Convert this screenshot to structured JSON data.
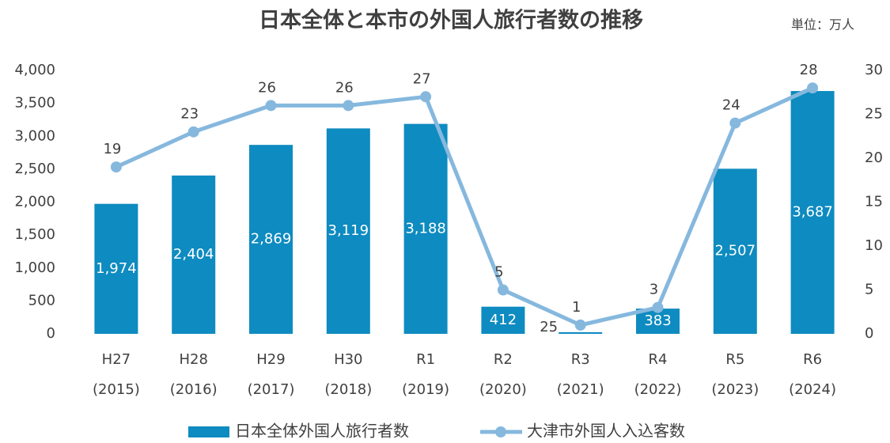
{
  "chart_data": {
    "type": "bar_line",
    "title": "日本全体と本市の外国人旅行者数の推移",
    "unit_label": "単位：万人",
    "categories": [
      [
        "H27",
        "(2015)"
      ],
      [
        "H28",
        "(2016)"
      ],
      [
        "H29",
        "(2017)"
      ],
      [
        "H30",
        "(2018)"
      ],
      [
        "R1",
        "(2019)"
      ],
      [
        "R2",
        "(2020)"
      ],
      [
        "R3",
        "(2021)"
      ],
      [
        "R4",
        "(2022)"
      ],
      [
        "R5",
        "(2023)"
      ],
      [
        "R6",
        "(2024)"
      ]
    ],
    "series": [
      {
        "name": "日本全体外国人旅行者数",
        "color": "#0e8bc0",
        "type": "bar",
        "axis": "y",
        "values": [
          1974,
          2404,
          2869,
          3119,
          3188,
          412,
          25,
          383,
          2507,
          3687
        ],
        "value_labels": [
          "1,974",
          "2,404",
          "2,869",
          "3,119",
          "3,188",
          "412",
          "25",
          "383",
          "2,507",
          "3,687"
        ]
      },
      {
        "name": "大津市外国人入込客数",
        "color": "#86b8de",
        "type": "line",
        "axis": "y2",
        "values": [
          19,
          23,
          26,
          26,
          27,
          5,
          1,
          3,
          24,
          28
        ]
      }
    ],
    "ylim": [
      0,
      4000
    ],
    "yticks": [
      0,
      500,
      {
        "value": 1000,
        "label": "1,000"
      },
      {
        "value": 1500,
        "label": "1,500"
      },
      {
        "value": 2000,
        "label": "2,000"
      },
      {
        "value": 2500,
        "label": "2,500"
      },
      {
        "value": 3000,
        "label": "3,000"
      },
      {
        "value": 3500,
        "label": "3,500"
      },
      {
        "value": 4000,
        "label": "4,000"
      }
    ],
    "y2lim": [
      0,
      30
    ],
    "y2ticks": [
      0,
      5,
      10,
      15,
      20,
      25,
      30
    ]
  }
}
